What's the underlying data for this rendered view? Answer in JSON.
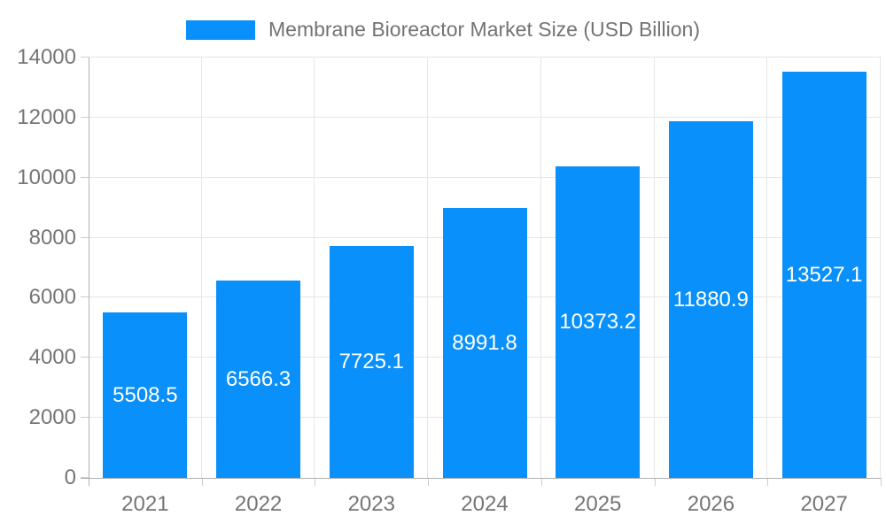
{
  "legend": {
    "label": "Membrane Bioreactor Market Size (USD Billion)"
  },
  "chart_data": {
    "type": "bar",
    "title": "Membrane Bioreactor Market Size (USD Billion)",
    "categories": [
      "2021",
      "2022",
      "2023",
      "2024",
      "2025",
      "2026",
      "2027"
    ],
    "values": [
      5508.5,
      6566.3,
      7725.1,
      8991.8,
      10373.2,
      11880.9,
      13527.1
    ],
    "value_labels": [
      "5508.5",
      "6566.3",
      "7725.1",
      "8991.8",
      "10373.2",
      "11880.9",
      "13527.1"
    ],
    "xlabel": "",
    "ylabel": "",
    "ylim": [
      0,
      14000
    ],
    "yticks": [
      0,
      2000,
      4000,
      6000,
      8000,
      10000,
      12000,
      14000
    ],
    "grid": true,
    "legend_position": "top",
    "bar_color": "#0a90fa",
    "value_label_color": "#ffffff",
    "axis_text_color": "#757575",
    "grid_color": "#e6e6e6",
    "tick_color": "#cccccc",
    "axis_line_color": "#b0b0b0"
  }
}
